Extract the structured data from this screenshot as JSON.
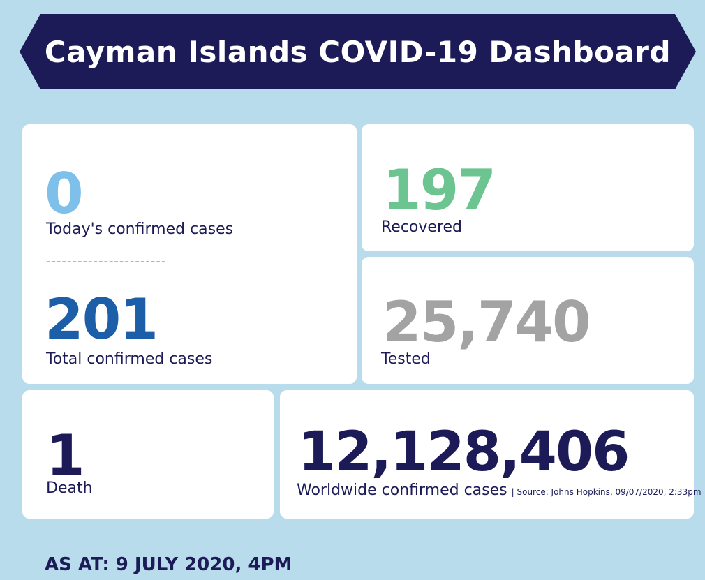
{
  "header": {
    "title": "Cayman Islands COVID-19 Dashboard"
  },
  "today": {
    "value": "0",
    "label": "Today's confirmed cases",
    "color": "#7ec0ea"
  },
  "divider": "-----------------------",
  "total": {
    "value": "201",
    "label": "Total confirmed cases",
    "color": "#1d5ea8"
  },
  "recovered": {
    "value": "197",
    "label": "Recovered",
    "color": "#6cc491"
  },
  "tested": {
    "value": "25,740",
    "label": "Tested",
    "color": "#a3a3a3"
  },
  "death": {
    "value": "1",
    "label": "Death",
    "color": "#1c1b57"
  },
  "worldwide": {
    "value": "12,128,406",
    "label": "Worldwide confirmed cases",
    "source": "| Source: Johns Hopkins, 09/07/2020, 2:33pm",
    "color": "#1c1b57"
  },
  "footer": {
    "as_at": "AS AT: 9 JULY 2020, 4PM"
  }
}
